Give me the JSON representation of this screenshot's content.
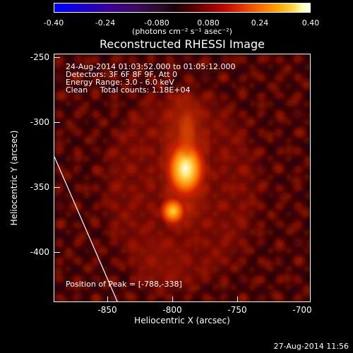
{
  "colorbar": {
    "ticks": [
      "-0.40",
      "-0.24",
      "-0.080",
      "0.080",
      "0.24",
      "0.40"
    ],
    "units": "(photons cm⁻² s⁻¹ asec⁻²)"
  },
  "title": "Reconstructed RHESSI Image",
  "info": {
    "time_range": "24-Aug-2014 01:03:52.000 to 01:05:12.000",
    "detectors": "Detectors: 3F 6F 8F 9F, Att 0",
    "energy": "Energy Range: 3.0 - 6.0 keV",
    "clean": "Clean     Total counts: 1.18E+04",
    "peak": "Position of Peak = [-788,-338]"
  },
  "axes": {
    "xlabel": "Heliocentric X (arcsec)",
    "ylabel": "Heliocentric Y (arcsec)",
    "xticks": [
      "-850",
      "-800",
      "-750",
      "-700"
    ],
    "yticks": [
      "-250",
      "-300",
      "-350",
      "-400"
    ]
  },
  "footer": "27-Aug-2014 11:56",
  "colors": {
    "background": "#000000",
    "foreground": "#ffffff"
  }
}
